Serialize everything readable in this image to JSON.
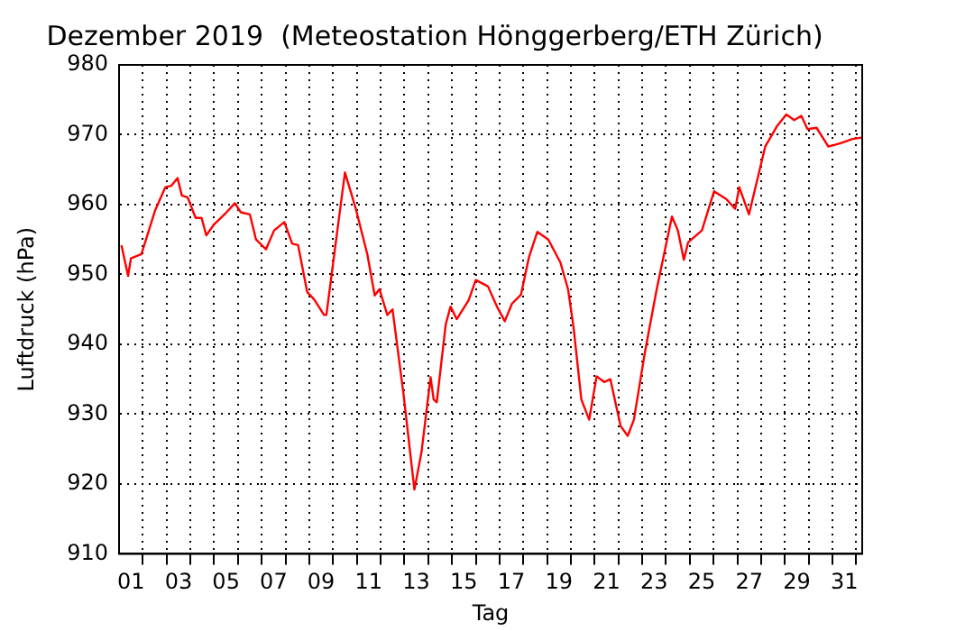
{
  "chart_data": {
    "type": "line",
    "title": "Dezember 2019  (Meteostation Hönggerberg/ETH Zürich)",
    "xlabel": "Tag",
    "ylabel": "Luftdruck (hPa)",
    "xlim": [
      1,
      32.25
    ],
    "ylim": [
      910,
      980
    ],
    "yticks": [
      910,
      920,
      930,
      940,
      950,
      960,
      970,
      980
    ],
    "xticks": [
      {
        "value": 1.5,
        "label": "01"
      },
      {
        "value": 2,
        "label": null
      },
      {
        "value": 3,
        "label": null
      },
      {
        "value": 3.5,
        "label": "03"
      },
      {
        "value": 4,
        "label": null
      },
      {
        "value": 5,
        "label": null
      },
      {
        "value": 5.5,
        "label": "05"
      },
      {
        "value": 6,
        "label": null
      },
      {
        "value": 7,
        "label": null
      },
      {
        "value": 7.5,
        "label": "07"
      },
      {
        "value": 8,
        "label": null
      },
      {
        "value": 9,
        "label": null
      },
      {
        "value": 9.5,
        "label": "09"
      },
      {
        "value": 10,
        "label": null
      },
      {
        "value": 11,
        "label": null
      },
      {
        "value": 11.5,
        "label": "11"
      },
      {
        "value": 12,
        "label": null
      },
      {
        "value": 13,
        "label": null
      },
      {
        "value": 13.5,
        "label": "13"
      },
      {
        "value": 14,
        "label": null
      },
      {
        "value": 15,
        "label": null
      },
      {
        "value": 15.5,
        "label": "15"
      },
      {
        "value": 16,
        "label": null
      },
      {
        "value": 17,
        "label": null
      },
      {
        "value": 17.5,
        "label": "17"
      },
      {
        "value": 18,
        "label": null
      },
      {
        "value": 19,
        "label": null
      },
      {
        "value": 19.5,
        "label": "19"
      },
      {
        "value": 20,
        "label": null
      },
      {
        "value": 21,
        "label": null
      },
      {
        "value": 21.5,
        "label": "21"
      },
      {
        "value": 22,
        "label": null
      },
      {
        "value": 23,
        "label": null
      },
      {
        "value": 23.5,
        "label": "23"
      },
      {
        "value": 24,
        "label": null
      },
      {
        "value": 25,
        "label": null
      },
      {
        "value": 25.5,
        "label": "25"
      },
      {
        "value": 26,
        "label": null
      },
      {
        "value": 27,
        "label": null
      },
      {
        "value": 27.5,
        "label": "27"
      },
      {
        "value": 28,
        "label": null
      },
      {
        "value": 29,
        "label": null
      },
      {
        "value": 29.5,
        "label": "29"
      },
      {
        "value": 30,
        "label": null
      },
      {
        "value": 31,
        "label": null
      },
      {
        "value": 31.5,
        "label": "31"
      },
      {
        "value": 32,
        "label": null
      }
    ],
    "grid": true,
    "legend": false,
    "marker": "none",
    "line_style": "solid",
    "series": [
      {
        "color": "#ff0000",
        "x": [
          1.1,
          1.38,
          1.5,
          1.94,
          2.52,
          2.95,
          3.2,
          3.46,
          3.64,
          3.89,
          4.22,
          4.47,
          4.67,
          4.98,
          5.49,
          5.87,
          6.12,
          6.5,
          6.76,
          7.18,
          7.52,
          7.95,
          8.28,
          8.53,
          8.91,
          9.21,
          9.62,
          9.72,
          10.18,
          10.5,
          10.94,
          11.44,
          11.75,
          11.95,
          12.28,
          12.5,
          12.96,
          13.42,
          13.72,
          14.1,
          14.23,
          14.36,
          14.74,
          14.94,
          15.2,
          15.7,
          16.0,
          16.51,
          16.89,
          17.22,
          17.52,
          17.9,
          18.24,
          18.59,
          19.05,
          19.56,
          19.88,
          20.11,
          20.44,
          20.77,
          21.08,
          21.4,
          21.66,
          22.09,
          22.39,
          22.65,
          23.11,
          23.61,
          24.25,
          24.5,
          24.75,
          24.93,
          25.51,
          26.02,
          26.53,
          26.91,
          27.08,
          27.49,
          28.17,
          28.68,
          29.06,
          29.39,
          29.69,
          29.95,
          30.33,
          30.83,
          31.34,
          31.85,
          32.23
        ],
        "values": [
          954.2,
          949.8,
          952.3,
          952.9,
          959.2,
          962.5,
          962.7,
          963.8,
          961.3,
          961,
          958.1,
          958.1,
          955.6,
          957.1,
          958.8,
          960.2,
          958.9,
          958.6,
          955,
          953.6,
          956.3,
          957.5,
          954.4,
          954.2,
          947.5,
          946.4,
          944.2,
          944.2,
          956.3,
          964.6,
          959.6,
          952.9,
          947,
          947.9,
          944.2,
          945,
          932.9,
          919.2,
          924.6,
          935.3,
          932.1,
          931.7,
          942.9,
          945.4,
          943.6,
          946.3,
          949.2,
          948.3,
          945.4,
          943.3,
          945.8,
          947.1,
          952.5,
          956.1,
          955,
          951.7,
          947.9,
          942.5,
          932.1,
          929.2,
          935.4,
          934.6,
          935,
          928.3,
          926.9,
          929.2,
          938.8,
          947.9,
          958.3,
          956.3,
          952.1,
          954.6,
          956.3,
          961.9,
          960.8,
          959.4,
          962.5,
          958.6,
          968.3,
          971.3,
          972.9,
          972.1,
          972.7,
          970.8,
          971,
          968.3,
          968.8,
          969.4,
          969.6
        ]
      }
    ]
  }
}
